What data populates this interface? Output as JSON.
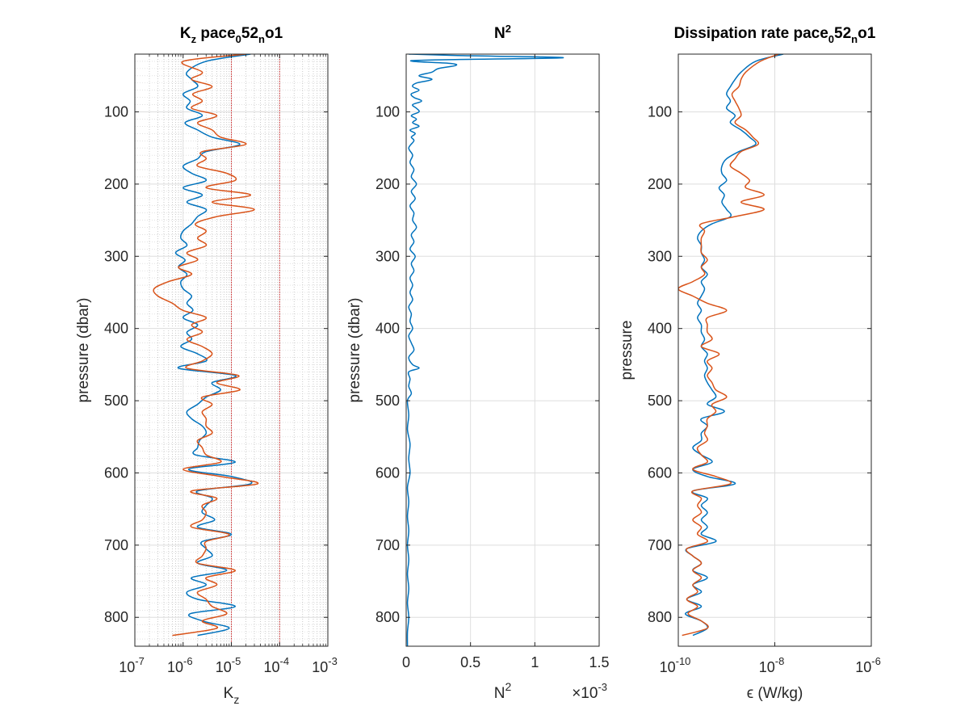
{
  "chart_data": [
    {
      "type": "line",
      "title_parts": [
        {
          "text": "K"
        },
        {
          "text": "z",
          "sub": true
        },
        {
          "text": " pace"
        },
        {
          "text": "0",
          "sub": true
        },
        {
          "text": "52"
        },
        {
          "text": "n",
          "sub": true
        },
        {
          "text": "o1"
        }
      ],
      "xlabel": {
        "base": "K",
        "sub": "z"
      },
      "ylabel": "pressure (dbar)",
      "xscale": "log",
      "xlim": [
        1e-07,
        0.001
      ],
      "ylim": [
        20,
        840
      ],
      "y_reversed": true,
      "grid": "major-and-minor",
      "xticks": [
        {
          "base": "10",
          "exp": "-7"
        },
        {
          "base": "10",
          "exp": "-6"
        },
        {
          "base": "10",
          "exp": "-5"
        },
        {
          "base": "10",
          "exp": "-4"
        },
        {
          "base": "10",
          "exp": "-3"
        }
      ],
      "yticks": [
        "100",
        "200",
        "300",
        "400",
        "500",
        "600",
        "700",
        "800"
      ],
      "reference_lines_x": [
        1e-05,
        0.0001
      ],
      "reference_color": "#d62728",
      "series": [
        {
          "color": "#0072BD",
          "pressure": [
            20,
            30,
            45,
            55,
            65,
            75,
            85,
            95,
            105,
            115,
            125,
            135,
            145,
            155,
            165,
            175,
            185,
            195,
            205,
            215,
            225,
            235,
            245,
            255,
            265,
            275,
            285,
            295,
            305,
            315,
            325,
            335,
            345,
            355,
            365,
            375,
            385,
            395,
            405,
            415,
            425,
            435,
            445,
            455,
            465,
            475,
            485,
            495,
            505,
            515,
            525,
            535,
            545,
            555,
            565,
            575,
            585,
            595,
            605,
            615,
            625,
            635,
            645,
            655,
            665,
            675,
            685,
            695,
            705,
            715,
            725,
            735,
            745,
            755,
            765,
            775,
            785,
            795,
            805,
            815,
            825
          ],
          "values": [
            2.5e-05,
            3e-06,
            1.2e-06,
            1.5e-06,
            2e-06,
            1e-06,
            1.4e-06,
            1.2e-06,
            2.5e-06,
            1.1e-06,
            2e-06,
            4e-06,
            1.5e-05,
            3e-06,
            2e-06,
            1e-06,
            1.5e-06,
            3e-06,
            1e-06,
            2.5e-06,
            1.2e-06,
            3e-06,
            2e-06,
            1.5e-06,
            1e-06,
            9e-07,
            1.2e-06,
            7e-07,
            1.1e-06,
            8e-07,
            1.2e-06,
            9e-07,
            1e-06,
            1.5e-06,
            1.2e-06,
            1.6e-06,
            1e-06,
            2e-06,
            1.2e-06,
            1.5e-06,
            9e-07,
            2e-06,
            3e-06,
            8e-07,
            1.2e-05,
            4e-06,
            6e-06,
            3e-06,
            2e-06,
            1.2e-06,
            1.5e-06,
            2.5e-06,
            3e-06,
            2.2e-06,
            2e-06,
            1.8e-06,
            1.2e-05,
            1.3e-06,
            1e-05,
            2.5e-05,
            2e-06,
            4e-06,
            3e-06,
            2.5e-06,
            4.5e-06,
            2e-06,
            1e-05,
            2.5e-06,
            3e-06,
            4e-06,
            2e-06,
            8e-06,
            1.5e-06,
            3e-06,
            1.2e-06,
            2e-06,
            1.2e-05,
            1.4e-06,
            2.5e-06,
            9e-06,
            2e-06
          ]
        },
        {
          "color": "#D95319",
          "pressure": [
            20,
            30,
            45,
            55,
            65,
            75,
            85,
            95,
            105,
            115,
            125,
            135,
            145,
            155,
            165,
            175,
            185,
            195,
            205,
            215,
            225,
            235,
            245,
            255,
            265,
            275,
            285,
            295,
            305,
            315,
            325,
            335,
            345,
            355,
            365,
            375,
            385,
            395,
            405,
            415,
            425,
            435,
            445,
            455,
            465,
            475,
            485,
            495,
            505,
            515,
            525,
            535,
            545,
            555,
            565,
            575,
            585,
            595,
            605,
            615,
            625,
            635,
            645,
            655,
            665,
            675,
            685,
            695,
            705,
            715,
            725,
            735,
            745,
            755,
            765,
            775,
            785,
            795,
            805,
            815,
            825
          ],
          "values": [
            2e-05,
            1e-06,
            2.5e-06,
            1.5e-06,
            4e-06,
            1.6e-06,
            2.5e-06,
            1.5e-06,
            5e-06,
            2e-06,
            4e-06,
            6e-06,
            2e-05,
            2.5e-06,
            3e-06,
            2e-06,
            8e-06,
            1.2e-05,
            3e-06,
            2.5e-05,
            4e-06,
            3e-05,
            5e-06,
            1.8e-06,
            3e-06,
            2e-06,
            3e-06,
            1.2e-06,
            2e-06,
            8e-07,
            1.5e-06,
            5e-07,
            2.5e-07,
            3e-07,
            6e-07,
            1e-06,
            3e-06,
            1.5e-06,
            2.5e-06,
            1.2e-06,
            2.5e-06,
            4e-06,
            2.5e-06,
            1.2e-06,
            1.4e-05,
            5e-06,
            1.5e-05,
            2.5e-06,
            4e-06,
            2.5e-06,
            3e-06,
            3e-06,
            4e-06,
            2e-06,
            2.5e-06,
            3e-06,
            6e-06,
            1e-06,
            6e-06,
            3.5e-05,
            1.5e-06,
            5e-06,
            2.5e-06,
            3e-06,
            2.5e-06,
            1.5e-06,
            9e-06,
            3e-06,
            3e-06,
            2.5e-06,
            2e-06,
            1.2e-05,
            3e-06,
            5e-06,
            2e-06,
            3e-06,
            4e-06,
            8e-06,
            2.5e-06,
            5e-06,
            6e-07
          ]
        }
      ]
    },
    {
      "type": "line",
      "title_parts": [
        {
          "text": "N"
        },
        {
          "text": "2",
          "sup": true
        }
      ],
      "xlabel": {
        "base": "N",
        "sup": "2"
      },
      "x_multiplier": {
        "prefix": "×10",
        "exp": "-3"
      },
      "ylabel": "pressure (dbar)",
      "xscale": "linear",
      "xlim": [
        0,
        1.5
      ],
      "ylim": [
        20,
        840
      ],
      "y_reversed": true,
      "grid": "major",
      "xticks": [
        "0",
        "0.5",
        "1",
        "1.5"
      ],
      "yticks": [
        "100",
        "200",
        "300",
        "400",
        "500",
        "600",
        "700",
        "800"
      ],
      "series": [
        {
          "color": "#0072BD",
          "pressure": [
            20,
            22,
            25,
            28,
            30,
            33,
            36,
            40,
            45,
            50,
            55,
            60,
            65,
            70,
            75,
            80,
            85,
            90,
            95,
            100,
            105,
            110,
            115,
            120,
            125,
            130,
            135,
            140,
            150,
            160,
            170,
            180,
            190,
            200,
            210,
            220,
            230,
            240,
            250,
            260,
            270,
            280,
            290,
            300,
            310,
            320,
            330,
            340,
            350,
            360,
            370,
            380,
            390,
            400,
            410,
            420,
            430,
            440,
            450,
            455,
            460,
            470,
            480,
            490,
            500,
            520,
            540,
            560,
            580,
            600,
            620,
            640,
            660,
            680,
            700,
            720,
            740,
            760,
            780,
            800,
            820,
            840
          ],
          "values": [
            0.02,
            0.4,
            1.22,
            0.2,
            0.05,
            0.35,
            0.38,
            0.25,
            0.2,
            0.1,
            0.2,
            0.08,
            0.05,
            0.1,
            0.04,
            0.06,
            0.12,
            0.05,
            0.08,
            0.1,
            0.04,
            0.08,
            0.05,
            0.1,
            0.03,
            0.07,
            0.04,
            0.06,
            0.02,
            0.05,
            0.03,
            0.06,
            0.04,
            0.08,
            0.04,
            0.07,
            0.03,
            0.06,
            0.05,
            0.08,
            0.04,
            0.06,
            0.03,
            0.07,
            0.04,
            0.06,
            0.03,
            0.05,
            0.03,
            0.05,
            0.02,
            0.04,
            0.03,
            0.05,
            0.02,
            0.04,
            0.06,
            0.02,
            0.05,
            0.1,
            0.02,
            0.03,
            0.02,
            0.04,
            0.01,
            0.02,
            0.01,
            0.03,
            0.02,
            0.03,
            0.01,
            0.02,
            0.01,
            0.02,
            0.01,
            0.02,
            0.01,
            0.02,
            0.01,
            0.02,
            0.01,
            0.01
          ]
        }
      ]
    },
    {
      "type": "line",
      "title_parts": [
        {
          "text": "Dissipation rate pace"
        },
        {
          "text": "0",
          "sub": true
        },
        {
          "text": "52"
        },
        {
          "text": "n",
          "sub": true
        },
        {
          "text": "o1"
        }
      ],
      "xlabel": {
        "base": "ϵ (W/kg)"
      },
      "ylabel": "pressure",
      "xscale": "log",
      "xlim": [
        1e-10,
        1e-06
      ],
      "ylim": [
        20,
        840
      ],
      "y_reversed": true,
      "grid": "major",
      "xticks": [
        {
          "base": "10",
          "exp": "-10"
        },
        {
          "base": "10",
          "exp": "-8"
        },
        {
          "base": "10",
          "exp": "-6"
        }
      ],
      "yticks": [
        "100",
        "200",
        "300",
        "400",
        "500",
        "600",
        "700",
        "800"
      ],
      "series": [
        {
          "color": "#0072BD",
          "pressure": [
            20,
            30,
            45,
            55,
            65,
            75,
            85,
            95,
            105,
            115,
            125,
            135,
            145,
            155,
            165,
            175,
            185,
            195,
            205,
            215,
            225,
            235,
            245,
            255,
            265,
            275,
            285,
            295,
            305,
            315,
            325,
            335,
            345,
            355,
            365,
            375,
            385,
            395,
            405,
            415,
            425,
            435,
            445,
            455,
            465,
            475,
            485,
            495,
            505,
            515,
            525,
            535,
            545,
            555,
            565,
            575,
            585,
            595,
            605,
            615,
            625,
            635,
            645,
            655,
            665,
            675,
            685,
            695,
            705,
            715,
            725,
            735,
            745,
            755,
            765,
            775,
            785,
            795,
            805,
            815,
            825
          ],
          "values": [
            1.5e-08,
            4e-09,
            2e-09,
            1.5e-09,
            1.2e-09,
            1e-09,
            1.2e-09,
            1e-09,
            1.5e-09,
            1.2e-09,
            2e-09,
            3e-09,
            4e-09,
            1.8e-09,
            1e-09,
            8e-10,
            8e-10,
            1e-09,
            7e-10,
            9e-10,
            8e-10,
            1e-09,
            1.2e-09,
            5e-10,
            3e-10,
            2.5e-10,
            3e-10,
            3e-10,
            3.5e-10,
            3e-10,
            4e-10,
            3e-10,
            3.5e-10,
            3e-10,
            2.5e-10,
            3e-10,
            2.5e-10,
            3e-10,
            3e-10,
            3.5e-10,
            3e-10,
            4e-10,
            3.5e-10,
            4e-10,
            3.5e-10,
            4e-10,
            5e-10,
            6e-10,
            4e-10,
            9e-10,
            3e-10,
            4e-10,
            3e-10,
            3e-10,
            2e-10,
            3e-10,
            5e-10,
            2e-10,
            4e-10,
            1.5e-09,
            2e-10,
            4e-10,
            3e-10,
            4e-10,
            3e-10,
            4e-10,
            3e-10,
            6e-10,
            1.5e-10,
            2e-10,
            3e-10,
            2e-10,
            4e-10,
            2e-10,
            3e-10,
            1.5e-10,
            3e-10,
            1.4e-10,
            3e-10,
            4e-10,
            2e-10
          ]
        },
        {
          "color": "#D95319",
          "pressure": [
            20,
            30,
            45,
            55,
            65,
            75,
            85,
            95,
            105,
            115,
            125,
            135,
            145,
            155,
            165,
            175,
            185,
            195,
            205,
            215,
            225,
            235,
            245,
            255,
            265,
            275,
            285,
            295,
            305,
            315,
            325,
            335,
            345,
            355,
            365,
            375,
            385,
            395,
            405,
            415,
            425,
            435,
            445,
            455,
            465,
            475,
            485,
            495,
            505,
            515,
            525,
            535,
            545,
            555,
            565,
            575,
            585,
            595,
            605,
            615,
            625,
            635,
            645,
            655,
            665,
            675,
            685,
            695,
            705,
            715,
            725,
            735,
            745,
            755,
            765,
            775,
            785,
            795,
            805,
            815,
            825
          ],
          "values": [
            1.2e-08,
            5e-09,
            2.5e-09,
            2e-09,
            1.8e-09,
            1.3e-09,
            1.5e-09,
            1.8e-09,
            2e-09,
            1.5e-09,
            2.5e-09,
            3.5e-09,
            4.5e-09,
            2e-09,
            1.5e-09,
            1.2e-09,
            2e-09,
            3e-09,
            2.5e-09,
            6e-09,
            2e-09,
            6e-09,
            1.5e-09,
            3e-10,
            3.5e-10,
            3e-10,
            3e-10,
            3e-10,
            4e-10,
            3e-10,
            3.5e-10,
            2e-10,
            1e-10,
            2e-10,
            4e-10,
            1e-09,
            4e-10,
            4e-10,
            4e-10,
            5e-10,
            3e-10,
            7e-10,
            4e-10,
            5e-10,
            4e-10,
            5e-10,
            6e-10,
            1e-09,
            5e-10,
            6e-10,
            4e-10,
            4e-10,
            3.5e-10,
            4e-10,
            2.5e-10,
            3e-10,
            4e-10,
            2e-10,
            6e-10,
            1.2e-09,
            2e-10,
            3e-10,
            2.5e-10,
            3e-10,
            2e-10,
            3e-10,
            2.5e-10,
            4e-10,
            1.5e-10,
            2e-10,
            3e-10,
            2e-10,
            3e-10,
            2e-10,
            2.5e-10,
            1.5e-10,
            2.5e-10,
            1.6e-10,
            3e-10,
            4e-10,
            1.2e-10
          ]
        }
      ]
    }
  ]
}
